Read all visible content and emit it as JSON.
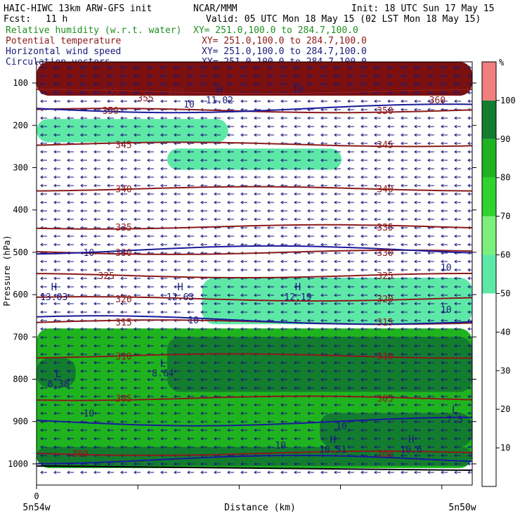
{
  "header": {
    "model": "HAIC-HIWC 13km ARW-GFS init",
    "org": "NCAR/MMM",
    "init": "Init: 18 UTC Sun 17 May 15",
    "fcst_label": "Fcst:",
    "fcst_value": "11 h",
    "valid": "Valid: 05 UTC Mon 18 May 15 (02 LST Mon 18 May 15)"
  },
  "fields": [
    {
      "name": "Relative humidity (w.r.t. water)",
      "xy": "XY= 251.0,100.0 to 284.7,100.0",
      "color": "#1f8f1f"
    },
    {
      "name": "Potential temperature",
      "xy": "XY= 251.0,100.0 to 284.7,100.0",
      "color": "#8b1a1a"
    },
    {
      "name": "Horizontal wind speed",
      "xy": "XY= 251.0,100.0 to 284.7,100.0",
      "color": "#1a1a7a"
    },
    {
      "name": "Circulation vectors",
      "xy": "XY= 251.0,100.0 to 284.7,100.0",
      "color": "#1a1a7a"
    }
  ],
  "chart_data": {
    "type": "heatmap",
    "xlabel": "Distance (km)",
    "ylabel": "Pressure (hPa)",
    "x_tick_labels": [
      "0"
    ],
    "x_left_label": "5n54w",
    "x_right_label": "5n50w",
    "y_ticks": [
      100,
      200,
      300,
      400,
      500,
      600,
      700,
      800,
      900,
      1000
    ],
    "y_range": [
      50,
      1050
    ],
    "colorbar": {
      "unit": "%",
      "ticks": [
        10,
        20,
        30,
        40,
        50,
        60,
        70,
        80,
        90,
        100
      ],
      "colors": [
        {
          "from": 50,
          "to": 60,
          "color": "#5ee8a8"
        },
        {
          "from": 60,
          "to": 70,
          "color": "#7cf07c"
        },
        {
          "from": 70,
          "to": 80,
          "color": "#2fd22f"
        },
        {
          "from": 80,
          "to": 90,
          "color": "#1fb41f"
        },
        {
          "from": 90,
          "to": 100,
          "color": "#137d2f"
        },
        {
          "from": 100,
          "to": 110,
          "color": "#f08080"
        }
      ]
    },
    "theta_isentropes": [
      {
        "theta": 300,
        "p": 975
      },
      {
        "theta": 305,
        "p": 845
      },
      {
        "theta": 310,
        "p": 745
      },
      {
        "theta": 315,
        "p": 665
      },
      {
        "theta": 320,
        "p": 610
      },
      {
        "theta": 325,
        "p": 555
      },
      {
        "theta": 330,
        "p": 500
      },
      {
        "theta": 335,
        "p": 440
      },
      {
        "theta": 340,
        "p": 350
      },
      {
        "theta": 345,
        "p": 245
      },
      {
        "theta": 350,
        "p": 165
      },
      {
        "theta": 355,
        "p": 120
      }
    ],
    "theta_labels": [
      {
        "text": "300",
        "x": 0.1,
        "p": 975
      },
      {
        "text": "300",
        "x": 0.8,
        "p": 975
      },
      {
        "text": "305",
        "x": 0.2,
        "p": 845
      },
      {
        "text": "305",
        "x": 0.8,
        "p": 845
      },
      {
        "text": "310",
        "x": 0.2,
        "p": 745
      },
      {
        "text": "310",
        "x": 0.8,
        "p": 745
      },
      {
        "text": "315",
        "x": 0.2,
        "p": 665
      },
      {
        "text": "315",
        "x": 0.8,
        "p": 665
      },
      {
        "text": "320",
        "x": 0.2,
        "p": 610
      },
      {
        "text": "320",
        "x": 0.8,
        "p": 610
      },
      {
        "text": "325",
        "x": 0.16,
        "p": 555
      },
      {
        "text": "325",
        "x": 0.8,
        "p": 555
      },
      {
        "text": "330",
        "x": 0.2,
        "p": 500
      },
      {
        "text": "330",
        "x": 0.8,
        "p": 500
      },
      {
        "text": "335",
        "x": 0.2,
        "p": 440
      },
      {
        "text": "335",
        "x": 0.8,
        "p": 440
      },
      {
        "text": "340",
        "x": 0.2,
        "p": 350
      },
      {
        "text": "340",
        "x": 0.8,
        "p": 350
      },
      {
        "text": "345",
        "x": 0.2,
        "p": 245
      },
      {
        "text": "345",
        "x": 0.8,
        "p": 245
      },
      {
        "text": "350",
        "x": 0.17,
        "p": 165
      },
      {
        "text": "350",
        "x": 0.8,
        "p": 165
      },
      {
        "text": "355",
        "x": 0.17,
        "p": 120
      },
      {
        "text": "355",
        "x": 0.25,
        "p": 135
      },
      {
        "text": "360",
        "x": 0.32,
        "p": 120
      },
      {
        "text": "360",
        "x": 0.92,
        "p": 140
      }
    ],
    "wind_isotachs": [
      {
        "speed": 10,
        "p": 160
      },
      {
        "speed": 10,
        "p": 495
      },
      {
        "speed": 10,
        "p": 660
      },
      {
        "speed": 10,
        "p": 900
      },
      {
        "speed": 10,
        "p": 990
      }
    ],
    "wind_labels": [
      {
        "text": "10",
        "x": 0.12,
        "p": 500
      },
      {
        "text": "10",
        "x": 0.94,
        "p": 535
      },
      {
        "text": "10",
        "x": 0.36,
        "p": 660
      },
      {
        "text": "10",
        "x": 0.94,
        "p": 635
      },
      {
        "text": "10",
        "x": 0.12,
        "p": 880
      },
      {
        "text": "10",
        "x": 0.7,
        "p": 910
      },
      {
        "text": "10",
        "x": 0.56,
        "p": 955
      },
      {
        "text": "10",
        "x": 0.6,
        "p": 115
      },
      {
        "text": "10",
        "x": 0.35,
        "p": 150
      }
    ],
    "extrema": [
      {
        "kind": "H",
        "value": "13.03",
        "x": 0.04,
        "p": 590
      },
      {
        "kind": "H",
        "value": "12.63",
        "x": 0.33,
        "p": 590
      },
      {
        "kind": "H",
        "value": "12.19",
        "x": 0.6,
        "p": 590
      },
      {
        "kind": "H",
        "value": "11.02",
        "x": 0.42,
        "p": 125
      },
      {
        "kind": "L",
        "value": "8.38",
        "x": 0.05,
        "p": 795
      },
      {
        "kind": "L",
        "value": "8.64",
        "x": 0.29,
        "p": 770
      },
      {
        "kind": "L",
        "value": "7.5",
        "x": 0.96,
        "p": 880
      },
      {
        "kind": "H",
        "value": "10.51",
        "x": 0.68,
        "p": 950
      },
      {
        "kind": "H",
        "value": "10.6",
        "x": 0.86,
        "p": 950
      }
    ],
    "rh_regions": [
      {
        "level": 50,
        "x": [
          0.0,
          0.44
        ],
        "p": [
          185,
          240
        ]
      },
      {
        "level": 50,
        "x": [
          0.3,
          0.7
        ],
        "p": [
          255,
          305
        ]
      },
      {
        "level": 50,
        "x": [
          0.38,
          1.0
        ],
        "p": [
          560,
          670
        ]
      },
      {
        "level": 80,
        "x": [
          0.0,
          1.0
        ],
        "p": [
          680,
          1010
        ]
      },
      {
        "level": 90,
        "x": [
          0.3,
          1.0
        ],
        "p": [
          700,
          830
        ]
      },
      {
        "level": 90,
        "x": [
          0.0,
          0.09
        ],
        "p": [
          750,
          820
        ]
      },
      {
        "level": 90,
        "x": [
          0.65,
          1.0
        ],
        "p": [
          880,
          960
        ]
      },
      {
        "level": 90,
        "x": [
          0.0,
          1.0
        ],
        "p": [
          960,
          1005
        ]
      },
      {
        "level": 100,
        "x": [
          0.0,
          1.0
        ],
        "p": [
          50,
          130
        ]
      }
    ]
  }
}
